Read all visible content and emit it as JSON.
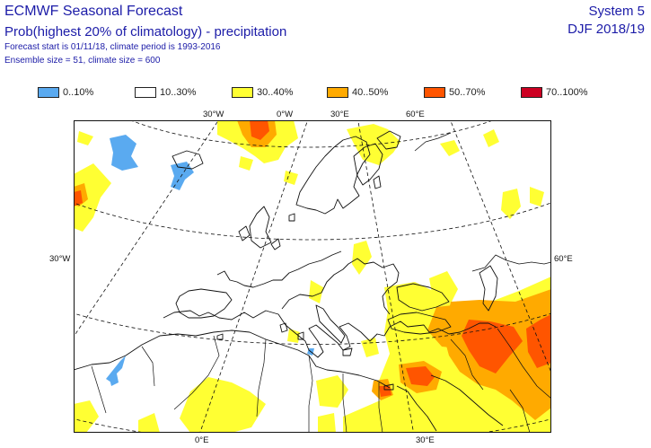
{
  "header": {
    "title": "ECMWF Seasonal Forecast",
    "subtitle": "Prob(highest 20% of climatology) - precipitation",
    "line1": "Forecast start is 01/11/18, climate period is 1993-2016",
    "line2": "Ensemble size = 51, climate size = 600",
    "system": "System 5",
    "season": "DJF 2018/19"
  },
  "legend": [
    {
      "label": "0..10%",
      "color": "#5aaaf0"
    },
    {
      "label": "10..30%",
      "color": "#ffffff"
    },
    {
      "label": "30..40%",
      "color": "#ffff33"
    },
    {
      "label": "40..50%",
      "color": "#ffaa00"
    },
    {
      "label": "50..70%",
      "color": "#ff5500"
    },
    {
      "label": "70..100%",
      "color": "#cc0022"
    }
  ],
  "grid_labels": {
    "top_30w": "30°W",
    "top_0e": "0°W",
    "top_30e": "30°E",
    "top_60e": "60°E",
    "left_30w": "30°W",
    "right_60e": "60°E",
    "bottom_0e": "0°E",
    "bottom_30e": "30°E"
  }
}
